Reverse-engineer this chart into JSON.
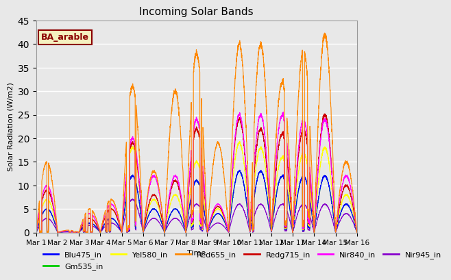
{
  "title": "Incoming Solar Bands",
  "xlabel": "Time",
  "ylabel": "Solar Radiation (W/m2)",
  "annotation": "BA_arable",
  "ylim": [
    0,
    45
  ],
  "xlim": [
    0,
    15
  ],
  "series": {
    "Blu475_in": {
      "color": "#0000ff",
      "lw": 0.8
    },
    "Gm535_in": {
      "color": "#00cc00",
      "lw": 0.8
    },
    "Yel580_in": {
      "color": "#ffff00",
      "lw": 0.8
    },
    "Red655_in": {
      "color": "#ff8800",
      "lw": 0.8
    },
    "Redg715_in": {
      "color": "#cc0000",
      "lw": 0.8
    },
    "Nir840_in": {
      "color": "#ff00ff",
      "lw": 0.8
    },
    "Nir945_in": {
      "color": "#8800cc",
      "lw": 0.8
    }
  },
  "x_tick_labels": [
    "Mar 1",
    "Mar 2",
    "Mar 3",
    "Mar 4",
    "Mar 5",
    "Mar 6",
    "Mar 7",
    "Mar 8",
    "Mar 9",
    "Mar 10",
    "Mar 11",
    "Mar 12",
    "Mar 13",
    "Mar 14",
    "Mar 15",
    "Mar 16"
  ],
  "n_days": 15,
  "pts_per_day": 200
}
